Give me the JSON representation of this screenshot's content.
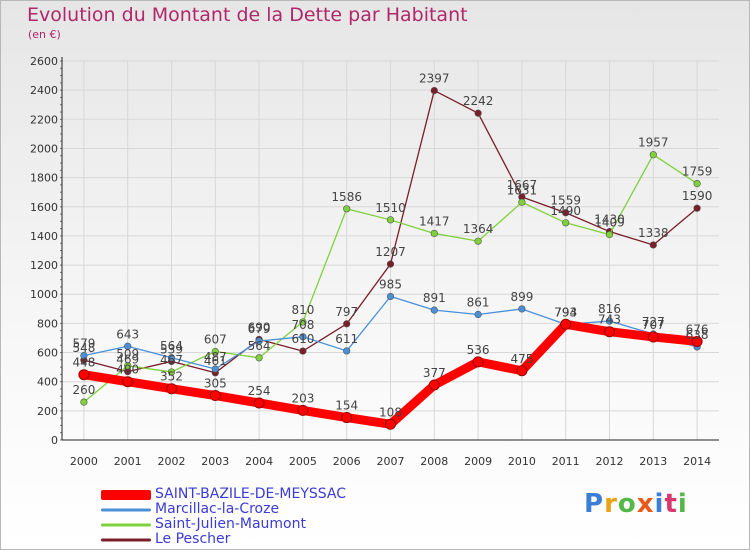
{
  "title": "Evolution du Montant de la Dette par Habitant",
  "subtitle": "(en €)",
  "logo_text": "Proxiti",
  "chart_data": {
    "type": "line",
    "title": "Evolution du Montant de la Dette par Habitant",
    "subtitle": "(en €)",
    "xlabel": "",
    "ylabel": "",
    "ylim": [
      0,
      2600
    ],
    "yticks": [
      "0",
      "200",
      "400",
      "600",
      "800",
      "1000",
      "1200",
      "1400",
      "1600",
      "1800",
      "2000",
      "2200",
      "2400",
      "2600"
    ],
    "categories": [
      "2000",
      "2001",
      "2002",
      "2003",
      "2004",
      "2005",
      "2006",
      "2007",
      "2008",
      "2009",
      "2010",
      "2011",
      "2012",
      "2013",
      "2014"
    ],
    "grid": true,
    "legend_position": "bottom-left",
    "series": [
      {
        "name": "Le Pescher",
        "color": "#7a1e28",
        "values": [
          548,
          469,
          539,
          461,
          690,
          610,
          797,
          1207,
          2397,
          2242,
          1667,
          1559,
          1430,
          1338,
          1590
        ]
      },
      {
        "name": "Saint-Julien-Maumont",
        "color": "#7fd13b",
        "values": [
          260,
          509,
          467,
          607,
          564,
          810,
          1586,
          1510,
          1417,
          1364,
          1631,
          1490,
          1409,
          1957,
          1759
        ]
      },
      {
        "name": "Marcillac-la-Croze",
        "color": "#4a90d9",
        "values": [
          579,
          643,
          564,
          487,
          679,
          708,
          611,
          985,
          891,
          861,
          899,
          793,
          816,
          727,
          638
        ]
      },
      {
        "name": "SAINT-BAZILE-DE-MEYSSAC",
        "color": "#ff0000",
        "values": [
          448,
          400,
          352,
          305,
          254,
          203,
          154,
          108,
          377,
          536,
          475,
          794,
          743,
          707,
          676
        ]
      }
    ]
  }
}
